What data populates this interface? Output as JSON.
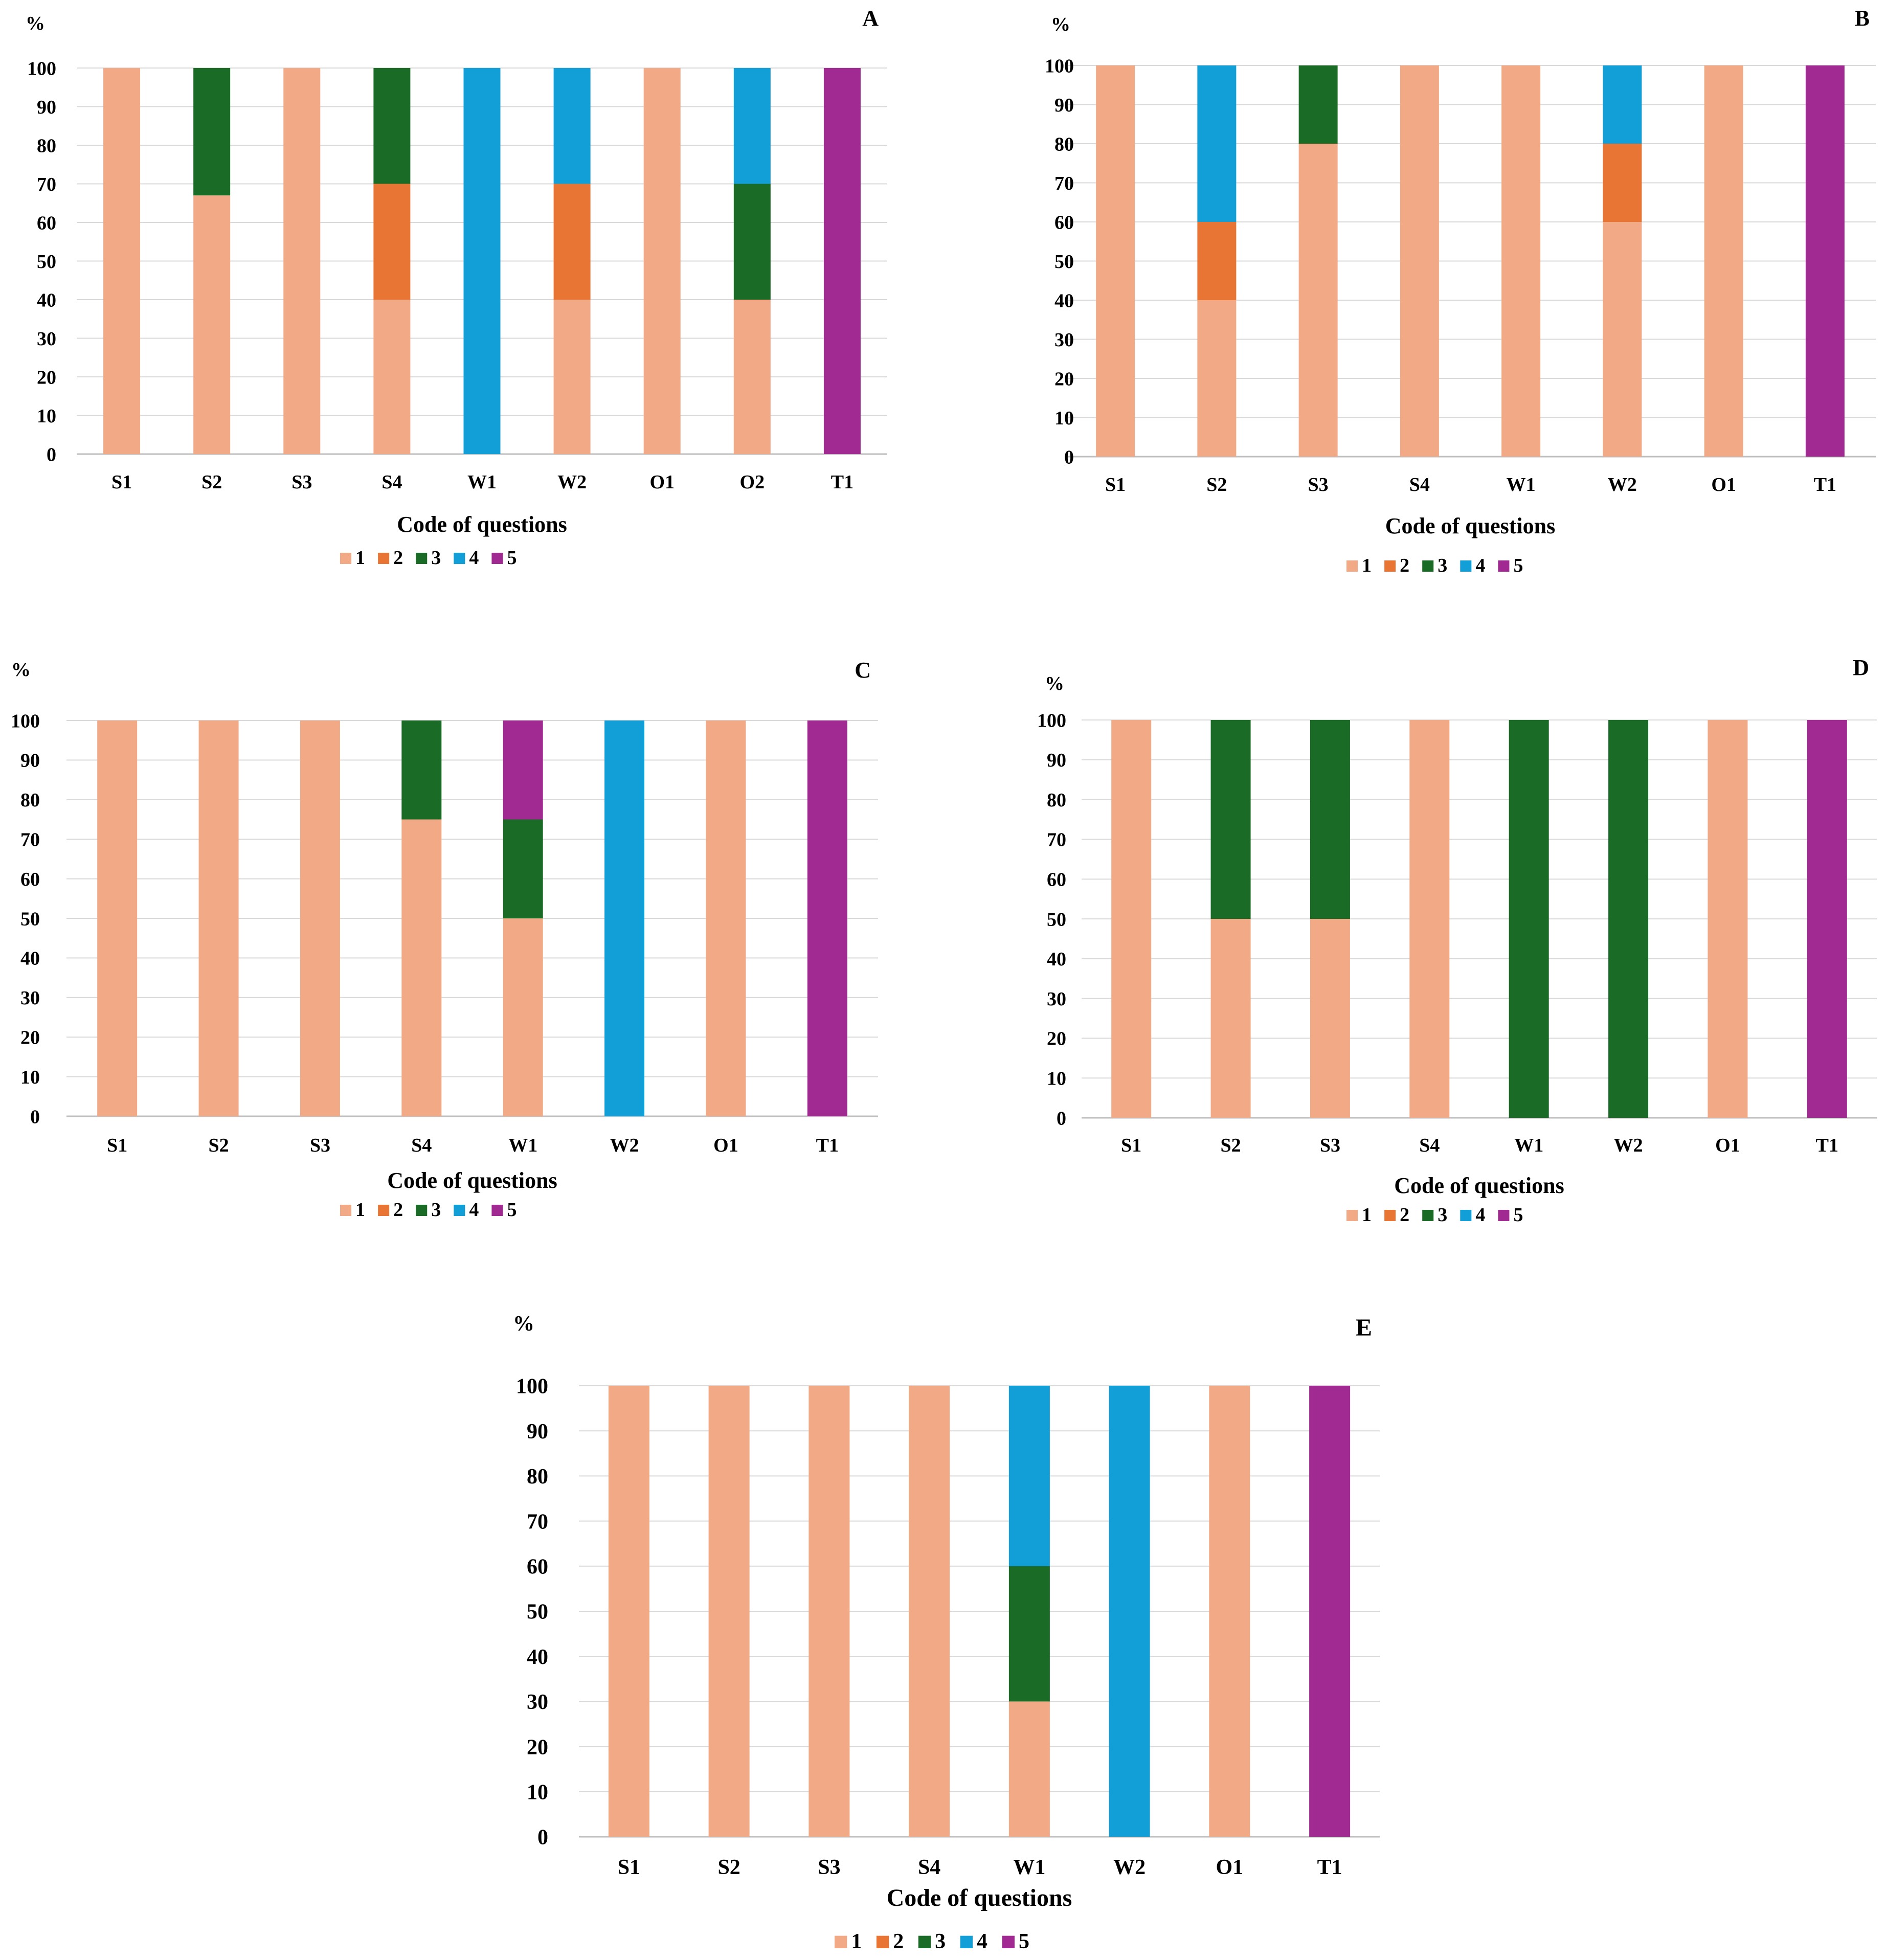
{
  "legend_label": "",
  "colors": {
    "1": "#F2A985",
    "2": "#E97534",
    "3": "#1A6B26",
    "4": "#129ED7",
    "5": "#A02A91",
    "grid": "#D9D9D9",
    "axis": "#BFBFBF"
  },
  "chart_data": [
    {
      "type": "bar",
      "stacked": true,
      "title": "A",
      "ylabel": "%",
      "xlabel": "Code of questions",
      "ylim": [
        0,
        100
      ],
      "yticks": [
        0,
        10,
        20,
        30,
        40,
        50,
        60,
        70,
        80,
        90,
        100
      ],
      "grid": true,
      "legend_position": "bottom",
      "categories": [
        "S1",
        "S2",
        "S3",
        "S4",
        "W1",
        "W2",
        "O1",
        "O2",
        "T1"
      ],
      "series": [
        {
          "name": "1",
          "values": [
            100,
            67,
            100,
            40,
            0,
            40,
            100,
            40,
            0
          ]
        },
        {
          "name": "2",
          "values": [
            0,
            0,
            0,
            30,
            0,
            30,
            0,
            0,
            0
          ]
        },
        {
          "name": "3",
          "values": [
            0,
            33,
            0,
            30,
            0,
            0,
            0,
            30,
            0
          ]
        },
        {
          "name": "4",
          "values": [
            0,
            0,
            0,
            0,
            100,
            30,
            0,
            30,
            0
          ]
        },
        {
          "name": "5",
          "values": [
            0,
            0,
            0,
            0,
            0,
            0,
            0,
            0,
            100
          ]
        }
      ]
    },
    {
      "type": "bar",
      "stacked": true,
      "title": "B",
      "ylabel": "%",
      "xlabel": "Code of questions",
      "ylim": [
        0,
        100
      ],
      "yticks": [
        0,
        10,
        20,
        30,
        40,
        50,
        60,
        70,
        80,
        90,
        100
      ],
      "grid": true,
      "legend_position": "bottom",
      "categories": [
        "S1",
        "S2",
        "S3",
        "S4",
        "W1",
        "W2",
        "O1",
        "T1"
      ],
      "series": [
        {
          "name": "1",
          "values": [
            100,
            40,
            80,
            100,
            100,
            60,
            100,
            0
          ]
        },
        {
          "name": "2",
          "values": [
            0,
            20,
            0,
            0,
            0,
            20,
            0,
            0
          ]
        },
        {
          "name": "3",
          "values": [
            0,
            0,
            20,
            0,
            0,
            0,
            0,
            0
          ]
        },
        {
          "name": "4",
          "values": [
            0,
            40,
            0,
            0,
            0,
            20,
            0,
            0
          ]
        },
        {
          "name": "5",
          "values": [
            0,
            0,
            0,
            0,
            0,
            0,
            0,
            100
          ]
        }
      ]
    },
    {
      "type": "bar",
      "stacked": true,
      "title": "C",
      "ylabel": "%",
      "xlabel": "Code of questions",
      "ylim": [
        0,
        100
      ],
      "yticks": [
        0,
        10,
        20,
        30,
        40,
        50,
        60,
        70,
        80,
        90,
        100
      ],
      "grid": true,
      "legend_position": "bottom",
      "categories": [
        "S1",
        "S2",
        "S3",
        "S4",
        "W1",
        "W2",
        "O1",
        "T1"
      ],
      "series": [
        {
          "name": "1",
          "values": [
            100,
            100,
            100,
            75,
            50,
            0,
            100,
            0
          ]
        },
        {
          "name": "2",
          "values": [
            0,
            0,
            0,
            0,
            0,
            0,
            0,
            0
          ]
        },
        {
          "name": "3",
          "values": [
            0,
            0,
            0,
            25,
            25,
            0,
            0,
            0
          ]
        },
        {
          "name": "4",
          "values": [
            0,
            0,
            0,
            0,
            0,
            100,
            0,
            0
          ]
        },
        {
          "name": "5",
          "values": [
            0,
            0,
            0,
            0,
            25,
            0,
            0,
            100
          ]
        }
      ]
    },
    {
      "type": "bar",
      "stacked": true,
      "title": "D",
      "ylabel": "%",
      "xlabel": "Code of questions",
      "ylim": [
        0,
        100
      ],
      "yticks": [
        0,
        10,
        20,
        30,
        40,
        50,
        60,
        70,
        80,
        90,
        100
      ],
      "grid": true,
      "legend_position": "bottom",
      "categories": [
        "S1",
        "S2",
        "S3",
        "S4",
        "W1",
        "W2",
        "O1",
        "T1"
      ],
      "series": [
        {
          "name": "1",
          "values": [
            100,
            50,
            50,
            100,
            0,
            0,
            100,
            0
          ]
        },
        {
          "name": "2",
          "values": [
            0,
            0,
            0,
            0,
            0,
            0,
            0,
            0
          ]
        },
        {
          "name": "3",
          "values": [
            0,
            50,
            50,
            0,
            100,
            100,
            0,
            0
          ]
        },
        {
          "name": "4",
          "values": [
            0,
            0,
            0,
            0,
            0,
            0,
            0,
            0
          ]
        },
        {
          "name": "5",
          "values": [
            0,
            0,
            0,
            0,
            0,
            0,
            0,
            100
          ]
        }
      ]
    },
    {
      "type": "bar",
      "stacked": true,
      "title": "E",
      "ylabel": "%",
      "xlabel": "Code of questions",
      "ylim": [
        0,
        100
      ],
      "yticks": [
        0,
        10,
        20,
        30,
        40,
        50,
        60,
        70,
        80,
        90,
        100
      ],
      "grid": true,
      "legend_position": "bottom",
      "categories": [
        "S1",
        "S2",
        "S3",
        "S4",
        "W1",
        "W2",
        "O1",
        "T1"
      ],
      "series": [
        {
          "name": "1",
          "values": [
            100,
            100,
            100,
            100,
            30,
            0,
            100,
            0
          ]
        },
        {
          "name": "2",
          "values": [
            0,
            0,
            0,
            0,
            0,
            0,
            0,
            0
          ]
        },
        {
          "name": "3",
          "values": [
            0,
            0,
            0,
            0,
            30,
            0,
            0,
            0
          ]
        },
        {
          "name": "4",
          "values": [
            0,
            0,
            0,
            0,
            40,
            100,
            0,
            0
          ]
        },
        {
          "name": "5",
          "values": [
            0,
            0,
            0,
            0,
            0,
            0,
            0,
            100
          ]
        }
      ]
    }
  ]
}
